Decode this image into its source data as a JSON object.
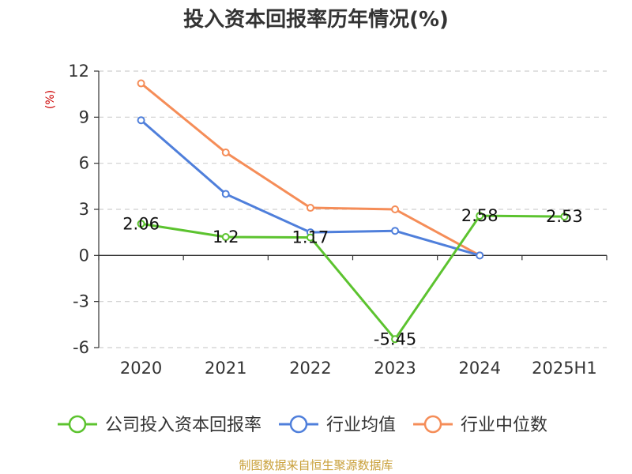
{
  "chart_data": {
    "type": "line",
    "title": "投入资本回报率历年情况(%)",
    "ylabel": "(%)",
    "categories": [
      "2020",
      "2021",
      "2022",
      "2023",
      "2024",
      "2025H1"
    ],
    "y_ticks": [
      "12",
      "9",
      "6",
      "3",
      "0",
      "-3",
      "-6"
    ],
    "ylim": [
      -6,
      12
    ],
    "grid": true,
    "legend_position": "bottom",
    "series": [
      {
        "name": "公司投入资本回报率",
        "color": "#5cc32f",
        "values": [
          2.06,
          1.2,
          1.17,
          -5.45,
          2.58,
          2.53
        ],
        "labels": [
          "2.06",
          "1.2",
          "1.17",
          "-5.45",
          "2.58",
          "2.53"
        ]
      },
      {
        "name": "行业均值",
        "color": "#4f7fdb",
        "values": [
          8.8,
          4.0,
          1.5,
          1.6,
          0.0,
          null
        ]
      },
      {
        "name": "行业中位数",
        "color": "#f58d58",
        "values": [
          11.2,
          6.7,
          3.1,
          3.0,
          0.0,
          null
        ]
      }
    ],
    "ylabel_color": "#cc0000"
  },
  "footer": {
    "source": "制图数据来自恒生聚源数据库",
    "source_color": "#c9a03a"
  }
}
